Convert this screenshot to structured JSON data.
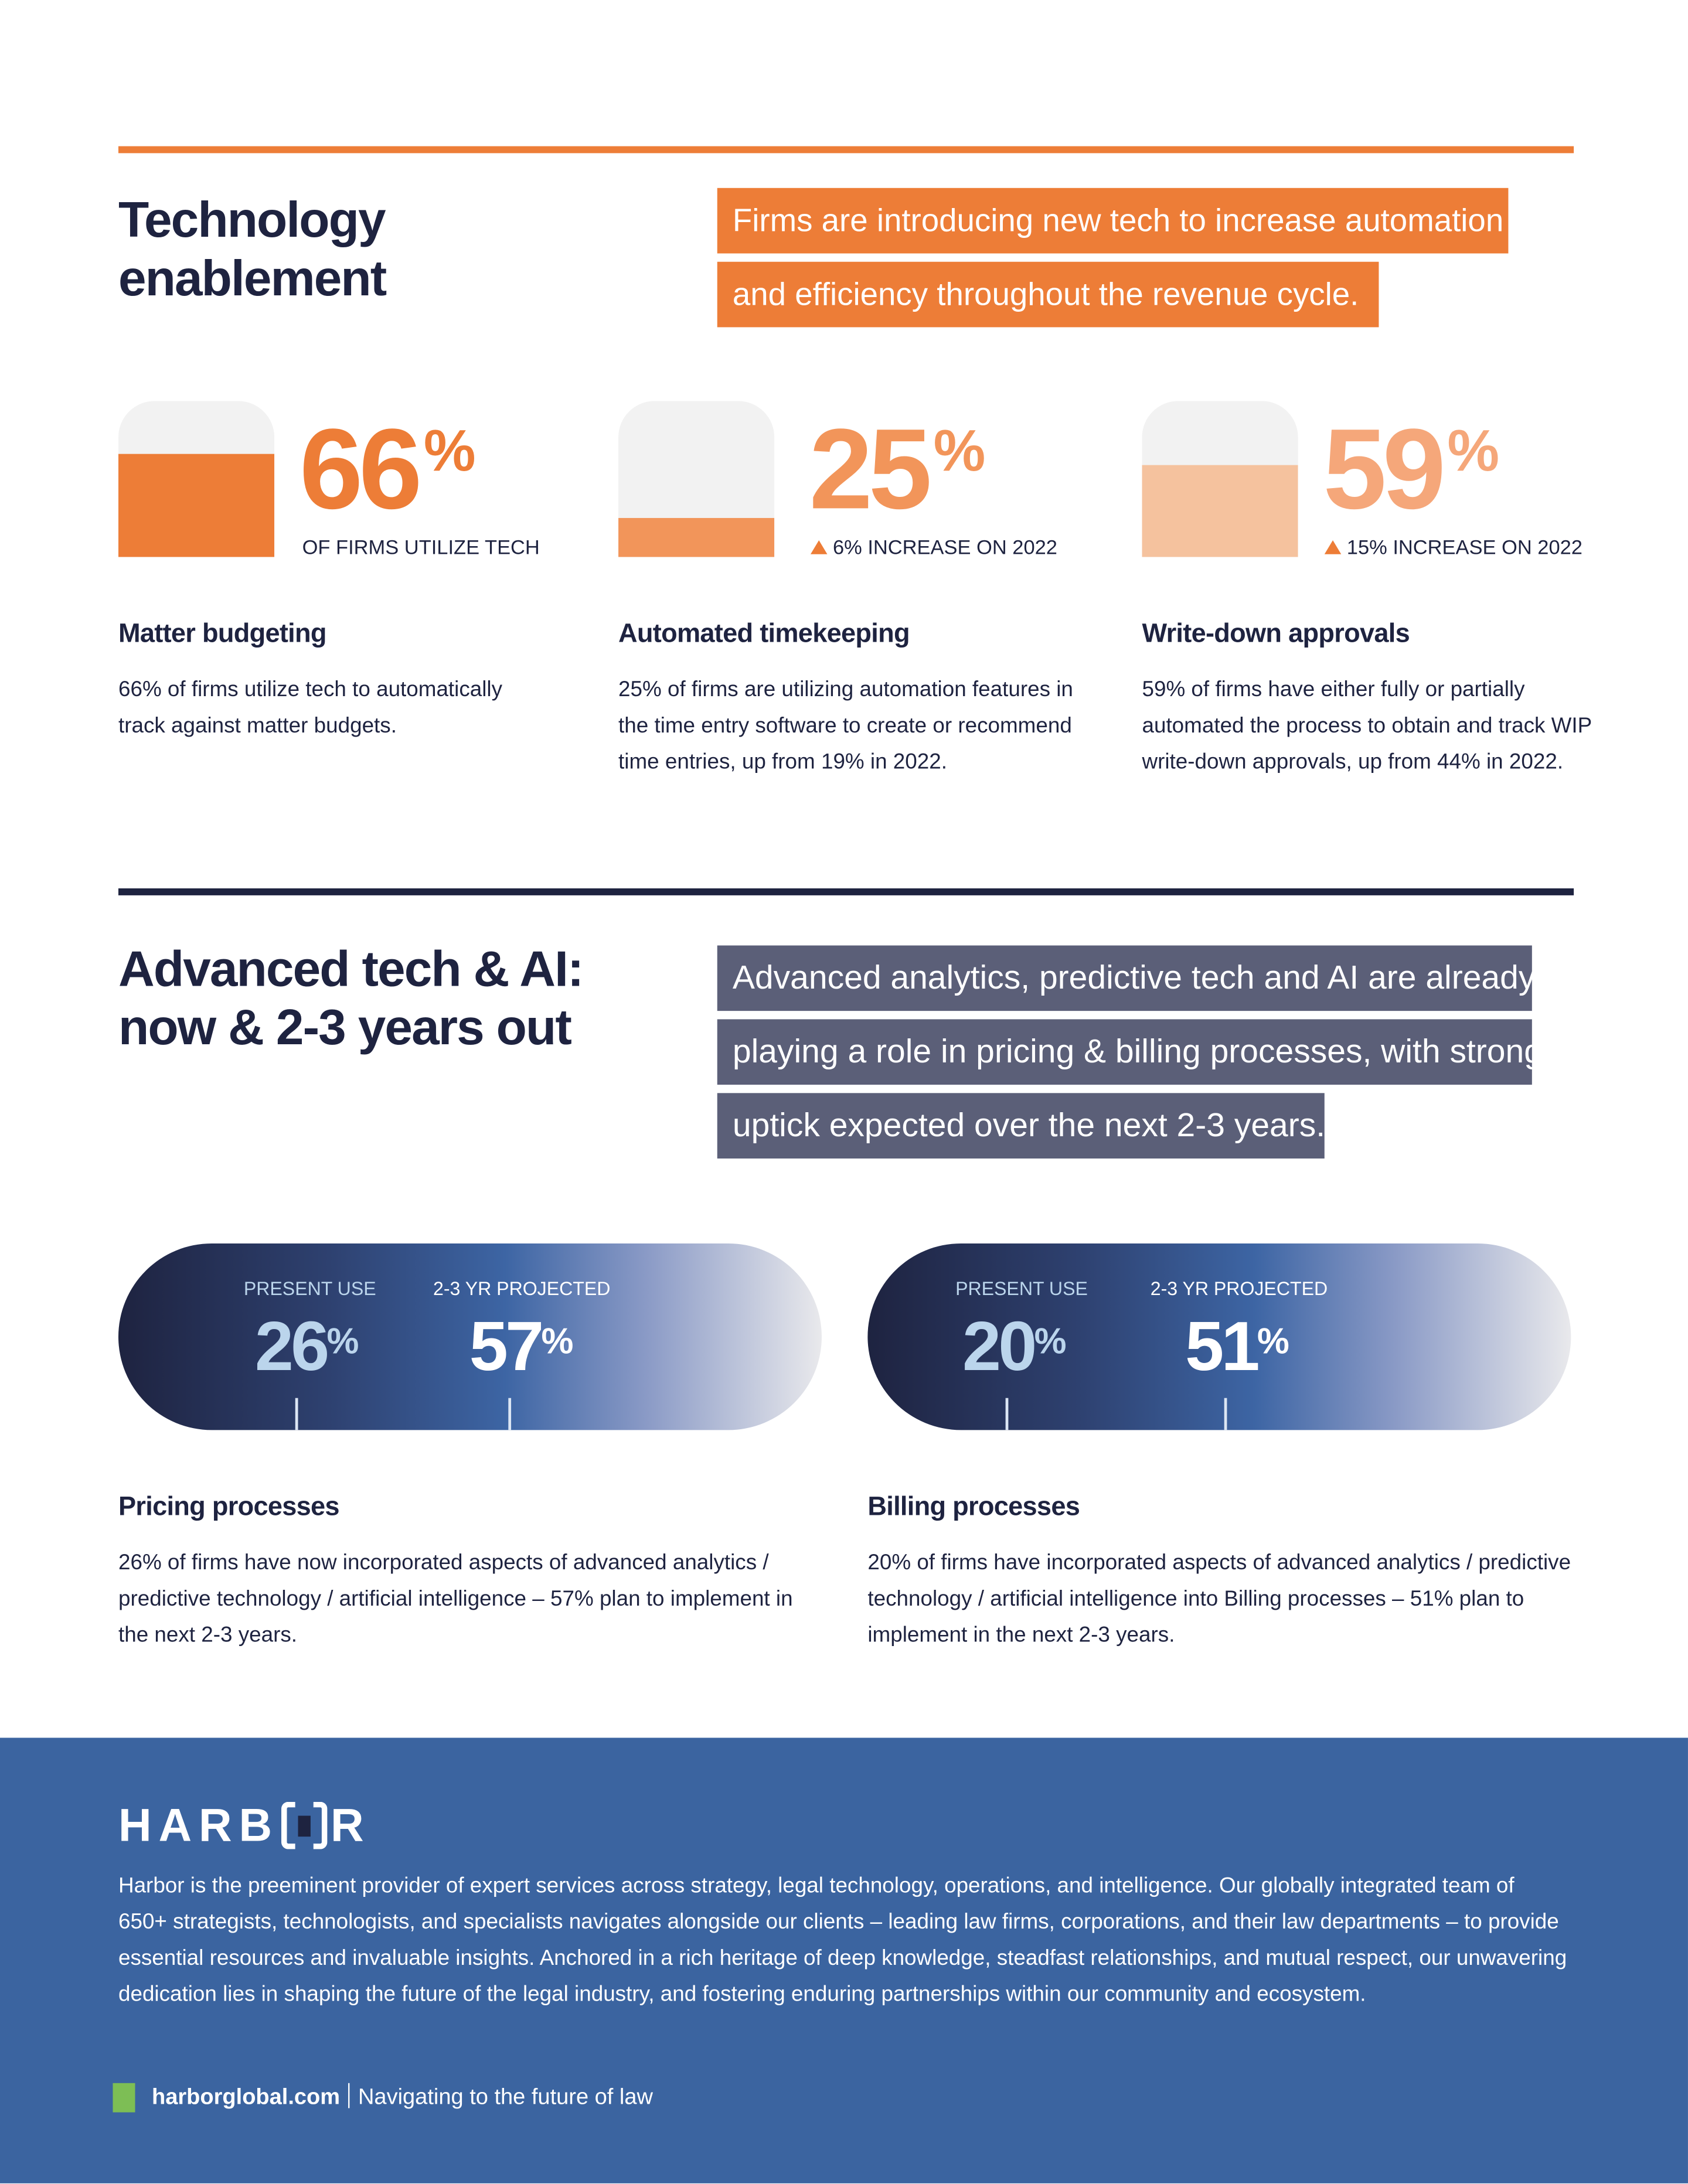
{
  "colors": {
    "orange": "#ED7D37",
    "orange_mid": "#F2955A",
    "orange_light": "#F5C29E",
    "navy": "#1E2340",
    "slate": "#5B5F78",
    "footer_blue": "#3B64A0",
    "green": "#7DBE55"
  },
  "section1": {
    "title_line1": "Technology",
    "title_line2": "enablement",
    "highlight_line1": "Firms are introducing new tech to increase automation",
    "highlight_line2": "and efficiency throughout the revenue cycle.",
    "stats": [
      {
        "value": "66",
        "unit": "%",
        "fill_percent": 66,
        "caption": "OF FIRMS UTILIZE TECH",
        "heading": "Matter budgeting",
        "body": "66% of firms utilize tech to automatically track against matter budgets."
      },
      {
        "value": "25",
        "unit": "%",
        "fill_percent": 25,
        "caption": "6% INCREASE ON 2022",
        "caption_icon": "triangle-up-icon",
        "heading": "Automated timekeeping",
        "body": "25% of firms are utilizing automation features in the time entry software to create or recommend time entries, up from 19% in 2022."
      },
      {
        "value": "59",
        "unit": "%",
        "fill_percent": 59,
        "caption": "15% INCREASE ON 2022",
        "caption_icon": "triangle-up-icon",
        "heading": "Write-down approvals",
        "body": "59% of firms have either fully or partially automated the process to obtain and track WIP write-down approvals, up from 44% in 2022."
      }
    ]
  },
  "section2": {
    "title_line1": "Advanced tech & AI:",
    "title_line2": "now & 2-3 years out",
    "highlight_lines": [
      "Advanced analytics, predictive tech and AI are already",
      "playing a role in pricing & billing processes, with strong",
      "uptick expected over the next 2-3 years."
    ],
    "pills": [
      {
        "present_label": "PRESENT USE",
        "present_value": "26",
        "projected_label": "2-3 YR PROJECTED",
        "projected_value": "57",
        "unit": "%",
        "heading": "Pricing processes",
        "body": "26% of firms have now incorporated aspects of advanced analytics / predictive technology / artificial intelligence – 57% plan to implement in the next 2-3 years."
      },
      {
        "present_label": "PRESENT USE",
        "present_value": "20",
        "projected_label": "2-3 YR PROJECTED",
        "projected_value": "51",
        "unit": "%",
        "heading": "Billing processes",
        "body": "20% of firms have incorporated aspects of advanced analytics / predictive technology / artificial intelligence into Billing processes – 51% plan to implement in the next 2-3 years."
      }
    ]
  },
  "footer": {
    "logo_text": "HARBOR",
    "about": "Harbor is the preeminent provider of expert services across strategy, legal technology, operations, and intelligence. Our globally integrated team of 650+ strategists, technologists, and specialists navigates alongside our clients – leading law firms, corporations, and their law departments – to provide essential resources and invaluable insights. Anchored in a rich heritage of deep knowledge, steadfast relationships, and mutual respect, our unwavering dedication lies in shaping the future of the legal industry, and fostering enduring partnerships within our community and ecosystem.",
    "website": "harborglobal.com",
    "tagline": "Navigating to the future of law"
  }
}
